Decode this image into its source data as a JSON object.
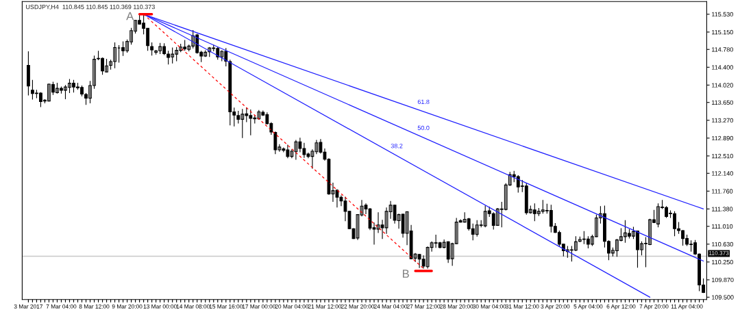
{
  "chart_data": {
    "type": "candlestick",
    "title": "USDJPY,H4  110.845 110.845 110.369 110.373",
    "categories": [
      "3 Mar 2017",
      null,
      null,
      null,
      null,
      null,
      null,
      null,
      "7 Mar 04:00",
      null,
      null,
      null,
      null,
      null,
      null,
      null,
      "8 Mar 12:00",
      null,
      null,
      null,
      null,
      null,
      null,
      null,
      "9 Mar 20:00",
      null,
      null,
      null,
      null,
      null,
      null,
      null,
      "13 Mar 00:00",
      null,
      null,
      null,
      null,
      null,
      null,
      null,
      "14 Mar 08:00",
      null,
      null,
      null,
      null,
      null,
      null,
      null,
      "15 Mar 16:00",
      null,
      null,
      null,
      null,
      null,
      null,
      null,
      "17 Mar 00:00",
      null,
      null,
      null,
      null,
      null,
      null,
      null,
      "20 Mar 04:00",
      null,
      null,
      null,
      null,
      null,
      null,
      null,
      "21 Mar 12:00",
      null,
      null,
      null,
      null,
      null,
      null,
      null,
      "22 Mar 20:00",
      null,
      null,
      null,
      null,
      null,
      null,
      null,
      "24 Mar 04:00",
      null,
      null,
      null,
      null,
      null,
      null,
      null,
      "27 Mar 12:00",
      null,
      null,
      null,
      null,
      null,
      null,
      null,
      "28 Mar 20:00",
      null,
      null,
      null,
      null,
      null,
      null,
      null,
      "30 Mar 04:00",
      null,
      null,
      null,
      null,
      null,
      null,
      null,
      "31 Mar 12:00",
      null,
      null,
      null,
      null,
      null,
      null,
      null,
      "3 Apr 20:00",
      null,
      null,
      null,
      null,
      null,
      null,
      null,
      "5 Apr 04:00",
      null,
      null,
      null,
      null,
      null,
      null,
      null,
      "6 Apr 12:00",
      null,
      null,
      null,
      null,
      null,
      null,
      null,
      "7 Apr 20:00",
      null,
      null,
      null,
      null,
      null,
      null,
      null,
      "11 Apr 04:00",
      null,
      null,
      null,
      null
    ],
    "ohlc": [
      [
        114.44,
        114.74,
        113.8,
        114.0
      ],
      [
        113.91,
        114.13,
        113.71,
        113.84
      ],
      [
        113.85,
        113.92,
        113.74,
        113.84
      ],
      [
        113.85,
        113.87,
        113.55,
        113.67
      ],
      [
        113.68,
        113.72,
        113.63,
        113.7
      ],
      [
        113.68,
        114.05,
        113.67,
        114.04
      ],
      [
        114.03,
        114.09,
        113.81,
        113.87
      ],
      [
        113.86,
        114.07,
        113.84,
        113.95
      ],
      [
        113.95,
        113.99,
        113.84,
        113.91
      ],
      [
        113.91,
        114.02,
        113.72,
        113.98
      ],
      [
        113.97,
        114.15,
        113.85,
        114.06
      ],
      [
        114.06,
        114.13,
        113.86,
        113.98
      ],
      [
        113.98,
        114.07,
        113.92,
        113.96
      ],
      [
        113.97,
        114.01,
        113.78,
        113.83
      ],
      [
        113.82,
        113.85,
        113.6,
        113.74
      ],
      [
        113.74,
        114.11,
        113.63,
        114.01
      ],
      [
        114.01,
        114.65,
        113.94,
        114.57
      ],
      [
        114.58,
        114.75,
        114.55,
        114.59
      ],
      [
        114.59,
        114.61,
        114.24,
        114.32
      ],
      [
        114.3,
        114.58,
        114.29,
        114.43
      ],
      [
        114.44,
        114.56,
        114.35,
        114.52
      ],
      [
        114.52,
        114.93,
        114.38,
        114.82
      ],
      [
        114.81,
        114.87,
        114.5,
        114.81
      ],
      [
        114.82,
        114.95,
        114.64,
        114.75
      ],
      [
        114.75,
        114.99,
        114.71,
        114.95
      ],
      [
        114.94,
        115.24,
        114.88,
        115.18
      ],
      [
        115.17,
        115.41,
        115.12,
        115.4
      ],
      [
        115.4,
        115.52,
        115.31,
        115.32
      ],
      [
        115.34,
        115.53,
        115.1,
        115.23
      ],
      [
        115.23,
        115.23,
        114.75,
        114.86
      ],
      [
        114.84,
        114.93,
        114.65,
        114.77
      ],
      [
        114.72,
        114.77,
        114.67,
        114.75
      ],
      [
        114.75,
        114.92,
        114.68,
        114.84
      ],
      [
        114.84,
        114.91,
        114.66,
        114.69
      ],
      [
        114.68,
        114.75,
        114.46,
        114.61
      ],
      [
        114.62,
        114.82,
        114.48,
        114.68
      ],
      [
        114.68,
        114.83,
        114.53,
        114.76
      ],
      [
        114.76,
        114.9,
        114.72,
        114.83
      ],
      [
        114.83,
        114.98,
        114.75,
        114.79
      ],
      [
        114.78,
        114.88,
        114.74,
        114.85
      ],
      [
        114.85,
        115.19,
        114.8,
        115.07
      ],
      [
        115.09,
        115.11,
        114.69,
        114.71
      ],
      [
        114.72,
        114.75,
        114.51,
        114.64
      ],
      [
        114.64,
        114.76,
        114.62,
        114.72
      ],
      [
        114.73,
        114.83,
        114.62,
        114.81
      ],
      [
        114.81,
        114.88,
        114.74,
        114.8
      ],
      [
        114.8,
        114.83,
        114.56,
        114.62
      ],
      [
        114.62,
        114.76,
        114.53,
        114.74
      ],
      [
        114.74,
        114.81,
        114.42,
        114.53
      ],
      [
        114.52,
        114.56,
        113.16,
        113.45
      ],
      [
        113.45,
        113.54,
        113.14,
        113.38
      ],
      [
        113.37,
        113.47,
        113.2,
        113.29
      ],
      [
        113.29,
        113.51,
        112.89,
        113.4
      ],
      [
        113.41,
        113.54,
        113.23,
        113.37
      ],
      [
        113.37,
        113.5,
        112.95,
        113.31
      ],
      [
        113.32,
        113.37,
        113.2,
        113.3
      ],
      [
        113.3,
        113.49,
        113.28,
        113.45
      ],
      [
        113.44,
        113.48,
        113.36,
        113.38
      ],
      [
        113.39,
        113.44,
        113.18,
        113.2
      ],
      [
        113.2,
        113.23,
        112.96,
        113.02
      ],
      [
        113.01,
        113.03,
        112.55,
        112.64
      ],
      [
        112.64,
        112.76,
        112.6,
        112.7
      ],
      [
        112.66,
        112.69,
        112.59,
        112.63
      ],
      [
        112.64,
        112.75,
        112.46,
        112.5
      ],
      [
        112.5,
        112.65,
        112.46,
        112.61
      ],
      [
        112.6,
        112.85,
        112.43,
        112.81
      ],
      [
        112.81,
        112.9,
        112.59,
        112.67
      ],
      [
        112.67,
        112.79,
        112.47,
        112.54
      ],
      [
        112.55,
        112.58,
        112.46,
        112.5
      ],
      [
        112.5,
        112.65,
        112.24,
        112.61
      ],
      [
        112.6,
        112.85,
        112.55,
        112.79
      ],
      [
        112.8,
        112.87,
        112.56,
        112.59
      ],
      [
        112.59,
        112.67,
        112.41,
        112.44
      ],
      [
        112.44,
        112.46,
        111.68,
        111.7
      ],
      [
        111.7,
        111.94,
        111.53,
        111.77
      ],
      [
        111.78,
        111.8,
        111.41,
        111.63
      ],
      [
        111.63,
        111.67,
        111.44,
        111.55
      ],
      [
        111.55,
        111.64,
        111.12,
        111.33
      ],
      [
        111.33,
        111.34,
        110.95,
        110.96
      ],
      [
        110.96,
        110.97,
        110.74,
        110.75
      ],
      [
        110.76,
        111.27,
        110.72,
        111.26
      ],
      [
        111.25,
        111.57,
        111.22,
        111.44
      ],
      [
        111.46,
        111.5,
        111.27,
        111.38
      ],
      [
        111.38,
        111.4,
        110.93,
        110.97
      ],
      [
        110.98,
        111.09,
        110.62,
        110.95
      ],
      [
        110.95,
        111.31,
        110.87,
        111.04
      ],
      [
        111.04,
        111.15,
        110.74,
        110.98
      ],
      [
        110.98,
        111.41,
        110.85,
        111.33
      ],
      [
        111.32,
        111.55,
        111.17,
        111.46
      ],
      [
        111.46,
        111.47,
        111.07,
        111.14
      ],
      [
        111.13,
        111.28,
        110.96,
        111.26
      ],
      [
        111.27,
        111.28,
        110.77,
        110.86
      ],
      [
        110.86,
        111.33,
        110.61,
        111.32
      ],
      [
        110.91,
        111.04,
        110.31,
        110.32
      ],
      [
        110.33,
        110.44,
        110.25,
        110.42
      ],
      [
        110.41,
        110.42,
        110.12,
        110.31
      ],
      [
        110.31,
        110.39,
        110.11,
        110.16
      ],
      [
        110.15,
        110.58,
        110.11,
        110.56
      ],
      [
        110.56,
        110.69,
        110.47,
        110.66
      ],
      [
        110.66,
        110.83,
        110.55,
        110.65
      ],
      [
        110.66,
        110.68,
        110.54,
        110.56
      ],
      [
        110.56,
        110.73,
        110.54,
        110.67
      ],
      [
        110.68,
        110.69,
        110.23,
        110.31
      ],
      [
        110.32,
        110.66,
        110.17,
        110.64
      ],
      [
        110.64,
        111.19,
        110.63,
        111.1
      ],
      [
        111.13,
        111.16,
        111.09,
        111.1
      ],
      [
        111.1,
        111.31,
        111.09,
        111.16
      ],
      [
        111.17,
        111.19,
        110.92,
        110.96
      ],
      [
        110.96,
        111.07,
        110.71,
        110.84
      ],
      [
        110.84,
        111.14,
        110.79,
        111.04
      ],
      [
        111.04,
        111.14,
        110.99,
        111.03
      ],
      [
        111.02,
        111.45,
        110.99,
        111.33
      ],
      [
        111.34,
        111.43,
        111.21,
        111.28
      ],
      [
        111.28,
        111.31,
        110.94,
        111.03
      ],
      [
        111.03,
        111.4,
        111.02,
        111.38
      ],
      [
        111.37,
        111.53,
        110.99,
        111.38
      ],
      [
        111.37,
        111.93,
        111.35,
        111.89
      ],
      [
        111.89,
        112.17,
        111.87,
        112.11
      ],
      [
        112.11,
        112.19,
        111.95,
        112.07
      ],
      [
        112.07,
        112.1,
        111.73,
        111.85
      ],
      [
        111.87,
        112.0,
        111.74,
        111.86
      ],
      [
        111.87,
        111.93,
        111.26,
        111.3
      ],
      [
        111.3,
        111.45,
        111.28,
        111.37
      ],
      [
        111.36,
        111.5,
        111.12,
        111.28
      ],
      [
        111.28,
        111.4,
        111.23,
        111.33
      ],
      [
        111.33,
        111.57,
        111.28,
        111.36
      ],
      [
        111.35,
        111.49,
        111.28,
        111.34
      ],
      [
        111.35,
        111.47,
        110.88,
        111.01
      ],
      [
        111.01,
        111.08,
        110.87,
        110.88
      ],
      [
        110.88,
        110.92,
        110.57,
        110.63
      ],
      [
        110.63,
        110.64,
        110.37,
        110.49
      ],
      [
        110.47,
        110.59,
        110.34,
        110.51
      ],
      [
        110.5,
        110.59,
        110.26,
        110.51
      ],
      [
        110.5,
        110.8,
        110.48,
        110.68
      ],
      [
        110.69,
        110.79,
        110.67,
        110.73
      ],
      [
        110.74,
        110.91,
        110.63,
        110.73
      ],
      [
        110.74,
        110.8,
        110.54,
        110.63
      ],
      [
        110.63,
        110.83,
        110.59,
        110.79
      ],
      [
        110.79,
        111.26,
        110.78,
        111.19
      ],
      [
        111.19,
        111.44,
        111.07,
        111.28
      ],
      [
        111.28,
        111.45,
        110.56,
        110.69
      ],
      [
        110.69,
        110.71,
        110.29,
        110.44
      ],
      [
        110.44,
        110.56,
        110.37,
        110.5
      ],
      [
        110.49,
        110.74,
        110.36,
        110.72
      ],
      [
        110.71,
        110.97,
        110.69,
        110.79
      ],
      [
        110.79,
        111.14,
        110.66,
        110.87
      ],
      [
        110.86,
        110.95,
        110.75,
        110.8
      ],
      [
        110.8,
        111.0,
        110.74,
        110.9
      ],
      [
        110.91,
        110.92,
        110.13,
        110.51
      ],
      [
        110.51,
        110.69,
        110.39,
        110.64
      ],
      [
        110.65,
        110.78,
        110.14,
        110.64
      ],
      [
        110.62,
        111.17,
        110.61,
        111.15
      ],
      [
        111.15,
        111.36,
        111.08,
        111.09
      ],
      [
        111.06,
        111.5,
        110.99,
        111.43
      ],
      [
        111.42,
        111.57,
        111.38,
        111.41
      ],
      [
        111.41,
        111.44,
        111.19,
        111.22
      ],
      [
        111.29,
        111.35,
        111.19,
        111.28
      ],
      [
        111.28,
        111.33,
        110.8,
        110.96
      ],
      [
        110.96,
        111.1,
        110.85,
        110.92
      ],
      [
        110.92,
        110.93,
        110.6,
        110.75
      ],
      [
        110.75,
        110.83,
        110.59,
        110.63
      ],
      [
        110.63,
        110.71,
        110.47,
        110.62
      ],
      [
        110.66,
        110.72,
        110.4,
        110.42
      ],
      [
        110.42,
        110.43,
        109.63,
        109.76
      ],
      [
        109.76,
        109.9,
        109.59,
        109.6
      ]
    ],
    "series": [
      {
        "type": "line",
        "name": "61.8",
        "color": "#2020ff",
        "values": [
          null,
          null,
          null,
          null,
          null,
          null,
          null,
          null,
          null,
          null,
          null,
          null,
          null,
          null,
          null,
          null,
          null,
          null,
          null,
          null,
          null,
          null,
          null,
          null,
          null,
          null,
          null,
          null,
          115.53,
          null,
          null,
          null,
          null,
          null,
          null,
          null,
          null,
          null,
          null,
          null,
          null,
          null,
          null,
          null,
          null,
          null,
          null,
          null,
          null,
          null,
          null,
          null,
          null,
          null,
          null,
          null,
          null,
          null,
          null,
          null,
          null,
          null,
          null,
          null,
          null,
          null,
          null,
          null,
          null,
          null,
          null,
          null,
          null,
          null,
          null,
          null,
          null,
          null,
          null,
          null,
          null,
          null,
          null,
          null,
          null,
          null,
          null,
          null,
          null,
          null,
          null,
          null,
          null,
          null,
          null,
          null,
          null,
          null,
          null,
          null,
          null,
          null,
          null,
          null,
          null,
          null,
          null,
          null,
          null,
          null,
          null,
          null,
          null,
          null,
          null,
          null,
          null,
          null,
          null,
          null,
          null,
          null,
          null,
          null,
          null,
          null,
          null,
          null,
          null,
          null,
          null,
          null,
          null,
          null,
          null,
          null,
          null,
          null,
          null,
          null,
          null,
          null,
          null,
          null,
          null,
          null,
          null,
          null,
          null,
          null,
          null,
          null,
          null,
          null,
          null,
          null,
          null,
          null,
          null,
          null,
          null,
          null,
          null,
          null,
          111.38
        ]
      },
      {
        "type": "line",
        "name": "50.0",
        "color": "#2020ff",
        "values": [
          null,
          null,
          null,
          null,
          null,
          null,
          null,
          null,
          null,
          null,
          null,
          null,
          null,
          null,
          null,
          null,
          null,
          null,
          null,
          null,
          null,
          null,
          null,
          null,
          null,
          null,
          null,
          null,
          115.53,
          null,
          null,
          null,
          null,
          null,
          null,
          null,
          null,
          null,
          null,
          null,
          null,
          null,
          null,
          null,
          null,
          null,
          null,
          null,
          null,
          null,
          null,
          null,
          null,
          null,
          null,
          null,
          null,
          null,
          null,
          null,
          null,
          null,
          null,
          null,
          null,
          null,
          null,
          null,
          null,
          null,
          null,
          null,
          null,
          null,
          null,
          null,
          null,
          null,
          null,
          null,
          null,
          null,
          null,
          null,
          null,
          null,
          null,
          null,
          null,
          null,
          null,
          null,
          null,
          null,
          null,
          null,
          null,
          null,
          null,
          null,
          null,
          null,
          null,
          null,
          null,
          null,
          null,
          null,
          null,
          null,
          null,
          null,
          null,
          null,
          null,
          null,
          null,
          null,
          null,
          null,
          null,
          null,
          null,
          null,
          null,
          null,
          null,
          null,
          null,
          null,
          null,
          null,
          null,
          null,
          null,
          null,
          null,
          null,
          null,
          null,
          null,
          null,
          null,
          null,
          null,
          null,
          null,
          null,
          null,
          null,
          null,
          null,
          null,
          null,
          null,
          null,
          null,
          null,
          null,
          null,
          null,
          null,
          null,
          null,
          110.27
        ]
      },
      {
        "type": "line",
        "name": "38.2",
        "color": "#2020ff",
        "values": [
          null,
          null,
          null,
          null,
          null,
          null,
          null,
          null,
          null,
          null,
          null,
          null,
          null,
          null,
          null,
          null,
          null,
          null,
          null,
          null,
          null,
          null,
          null,
          null,
          null,
          null,
          null,
          null,
          115.53,
          null,
          null,
          null,
          null,
          null,
          null,
          null,
          null,
          null,
          null,
          null,
          null,
          null,
          null,
          null,
          null,
          null,
          null,
          null,
          null,
          null,
          null,
          null,
          null,
          null,
          null,
          null,
          null,
          null,
          null,
          null,
          null,
          null,
          null,
          null,
          null,
          null,
          null,
          null,
          null,
          null,
          null,
          null,
          null,
          null,
          null,
          null,
          null,
          null,
          null,
          null,
          null,
          null,
          null,
          null,
          null,
          null,
          null,
          null,
          null,
          null,
          null,
          null,
          null,
          null,
          null,
          null,
          null,
          null,
          null,
          null,
          null,
          null,
          null,
          null,
          null,
          null,
          null,
          null,
          null,
          null,
          null,
          null,
          null,
          null,
          null,
          null,
          null,
          null,
          null,
          null,
          null,
          null,
          null,
          null,
          null,
          null,
          null,
          null,
          null,
          null,
          null,
          null,
          null,
          null,
          null,
          null,
          null,
          null,
          null,
          null,
          null,
          null,
          null,
          null,
          null,
          null,
          null,
          null,
          null,
          null,
          null,
          109.5,
          null,
          null,
          null,
          null,
          null,
          null,
          null,
          null,
          null,
          null,
          null,
          null,
          null
        ]
      },
      {
        "type": "line",
        "color": "#ff0000",
        "line_style": "dashed",
        "values": [
          null,
          null,
          null,
          null,
          null,
          null,
          null,
          null,
          null,
          null,
          null,
          null,
          null,
          null,
          null,
          null,
          null,
          null,
          null,
          null,
          null,
          null,
          null,
          null,
          null,
          null,
          null,
          null,
          115.53,
          null,
          null,
          null,
          null,
          null,
          null,
          null,
          null,
          null,
          null,
          null,
          null,
          null,
          null,
          null,
          null,
          null,
          null,
          null,
          null,
          null,
          null,
          null,
          null,
          null,
          null,
          null,
          null,
          null,
          null,
          null,
          null,
          null,
          null,
          null,
          null,
          null,
          null,
          null,
          null,
          null,
          null,
          null,
          null,
          null,
          null,
          null,
          null,
          null,
          null,
          null,
          null,
          null,
          null,
          null,
          null,
          null,
          null,
          null,
          null,
          null,
          null,
          null,
          null,
          null,
          null,
          null,
          110.11,
          null,
          null,
          null,
          null,
          null,
          null,
          null,
          null,
          null,
          null,
          null,
          null,
          null,
          null,
          null,
          null,
          null,
          null,
          null,
          null,
          null,
          null,
          null,
          null,
          null,
          null,
          null,
          null,
          null,
          null,
          null,
          null,
          null,
          null,
          null,
          null,
          null,
          null,
          null,
          null,
          null,
          null,
          null,
          null,
          null,
          null,
          null,
          null,
          null,
          null,
          null,
          null,
          null,
          null,
          null,
          null,
          null,
          null,
          null,
          null,
          null,
          null,
          null,
          null,
          null,
          null,
          null,
          null
        ]
      },
      {
        "type": "line",
        "name": "A",
        "color": "#ff0000",
        "values": [
          null,
          null,
          null,
          null,
          null,
          null,
          null,
          null,
          null,
          null,
          null,
          null,
          null,
          null,
          null,
          null,
          null,
          null,
          null,
          null,
          null,
          null,
          null,
          null,
          null,
          null,
          null,
          115.53,
          115.53,
          115.53,
          115.53,
          null,
          null,
          null,
          null,
          null,
          null,
          null,
          null,
          null,
          null,
          null,
          null,
          null,
          null,
          null,
          null,
          null,
          null,
          null,
          null,
          null,
          null,
          null,
          null,
          null,
          null,
          null,
          null,
          null,
          null,
          null,
          null,
          null,
          null,
          null,
          null,
          null,
          null,
          null,
          null,
          null,
          null,
          null,
          null,
          null,
          null,
          null,
          null,
          null,
          null,
          null,
          null,
          null,
          null,
          null,
          null,
          null,
          null,
          null,
          null,
          null,
          null,
          null,
          null,
          null,
          null,
          null,
          null,
          null,
          null,
          null,
          null,
          null,
          null,
          null,
          null,
          null,
          null,
          null,
          null,
          null,
          null,
          null,
          null,
          null,
          null,
          null,
          null,
          null,
          null,
          null,
          null,
          null,
          null,
          null,
          null,
          null,
          null,
          null,
          null,
          null,
          null,
          null,
          null,
          null,
          null,
          null,
          null,
          null,
          null,
          null,
          null,
          null,
          null,
          null,
          null,
          null,
          null,
          null,
          null,
          null,
          null,
          null,
          null,
          null,
          null,
          null,
          null,
          null,
          null,
          null,
          null,
          null,
          null
        ]
      },
      {
        "type": "line",
        "name": "B",
        "color": "#ff0000",
        "values": [
          null,
          null,
          null,
          null,
          null,
          null,
          null,
          null,
          null,
          null,
          null,
          null,
          null,
          null,
          null,
          null,
          null,
          null,
          null,
          null,
          null,
          null,
          null,
          null,
          null,
          null,
          null,
          null,
          null,
          null,
          null,
          null,
          null,
          null,
          null,
          null,
          null,
          null,
          null,
          null,
          null,
          null,
          null,
          null,
          null,
          null,
          null,
          null,
          null,
          null,
          null,
          null,
          null,
          null,
          null,
          null,
          null,
          null,
          null,
          null,
          null,
          null,
          null,
          null,
          null,
          null,
          null,
          null,
          null,
          null,
          null,
          null,
          null,
          null,
          null,
          null,
          null,
          null,
          null,
          null,
          null,
          null,
          null,
          null,
          null,
          null,
          null,
          null,
          null,
          null,
          null,
          null,
          null,
          null,
          110.06,
          110.06,
          110.06,
          110.06,
          110.06,
          null,
          null,
          null,
          null,
          null,
          null,
          null,
          null,
          null,
          null,
          null,
          null,
          null,
          null,
          null,
          null,
          null,
          null,
          null,
          null,
          null,
          null,
          null,
          null,
          null,
          null,
          null,
          null,
          null,
          null,
          null,
          null,
          null,
          null,
          null,
          null,
          null,
          null,
          null,
          null,
          null,
          null,
          null,
          null,
          null,
          null,
          null,
          null,
          null,
          null,
          null,
          null,
          null,
          null,
          null,
          null,
          null,
          null,
          null,
          null,
          null,
          null,
          null,
          null,
          null,
          null
        ]
      }
    ],
    "ref_lines": [
      {
        "axis": "y",
        "value": 110.373,
        "label": "110.373",
        "color": "#c8c8c8"
      }
    ],
    "ylim": [
      109.45,
      115.8
    ],
    "yticks": [
      {
        "value": 115.53,
        "label": "115.530"
      },
      {
        "value": 115.15,
        "label": "115.150"
      },
      {
        "value": 114.78,
        "label": "114.780"
      },
      {
        "value": 114.4,
        "label": "114.400"
      },
      {
        "value": 114.02,
        "label": "114.020"
      },
      {
        "value": 113.65,
        "label": "113.650"
      },
      {
        "value": 113.27,
        "label": "113.270"
      },
      {
        "value": 112.89,
        "label": "112.890"
      },
      {
        "value": 112.51,
        "label": "112.510"
      },
      {
        "value": 112.14,
        "label": "112.140"
      },
      {
        "value": 111.76,
        "label": "111.760"
      },
      {
        "value": 111.38,
        "label": "111.380"
      },
      {
        "value": 111.01,
        "label": "111.010"
      },
      {
        "value": 110.63,
        "label": "110.630"
      },
      {
        "value": 110.25,
        "label": "110.250"
      },
      {
        "value": 109.87,
        "label": "109.870"
      },
      {
        "value": 109.5,
        "label": "109.500"
      }
    ]
  }
}
